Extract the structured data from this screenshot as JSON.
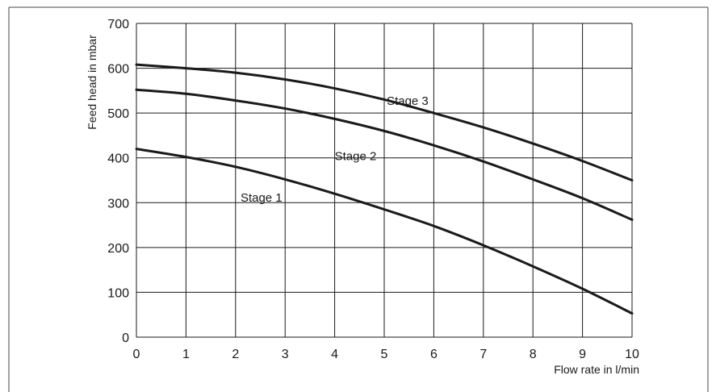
{
  "chart_data": {
    "type": "line",
    "title": "",
    "xlabel": "Flow rate in l/min",
    "ylabel": "Feed head in mbar",
    "xlim": [
      0,
      10
    ],
    "ylim": [
      0,
      700
    ],
    "grid": true,
    "legend": "none",
    "x_ticks": [
      "0",
      "1",
      "2",
      "3",
      "4",
      "5",
      "6",
      "7",
      "8",
      "9",
      "10"
    ],
    "y_ticks": [
      "0",
      "100",
      "200",
      "300",
      "400",
      "500",
      "600",
      "700"
    ],
    "series": [
      {
        "name": "Stage 1",
        "x": [
          0,
          1,
          2,
          3,
          4,
          5,
          6,
          7,
          8,
          9,
          10
        ],
        "values": [
          420,
          402,
          380,
          352,
          320,
          285,
          248,
          205,
          158,
          108,
          53
        ]
      },
      {
        "name": "Stage 2",
        "x": [
          0,
          1,
          2,
          3,
          4,
          5,
          6,
          7,
          8,
          9,
          10
        ],
        "values": [
          552,
          543,
          528,
          510,
          487,
          460,
          428,
          392,
          352,
          310,
          262
        ]
      },
      {
        "name": "Stage 3",
        "x": [
          0,
          1,
          2,
          3,
          4,
          5,
          6,
          7,
          8,
          9,
          10
        ],
        "values": [
          608,
          600,
          590,
          575,
          555,
          530,
          500,
          468,
          432,
          393,
          350
        ]
      }
    ],
    "line_color": "#1a1a1a",
    "grid_color": "#1a1a1a"
  }
}
